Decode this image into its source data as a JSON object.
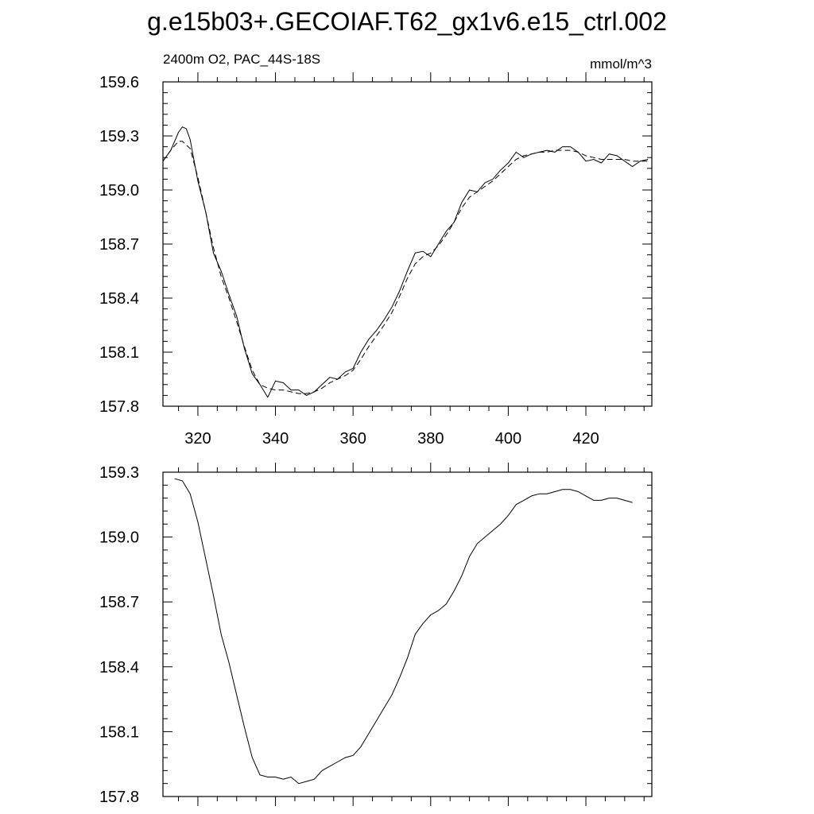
{
  "figure": {
    "title": "g.e15b03+.GECOIAF.T62_gx1v6.e15_ctrl.002"
  },
  "chart_data": [
    {
      "type": "line",
      "subtitle_left": "2400m O2, PAC_44S-18S",
      "subtitle_right": "mmol/m^3",
      "xlabel": "",
      "ylabel": "",
      "xlim": [
        311,
        437
      ],
      "ylim": [
        157.8,
        159.6
      ],
      "xticks": [
        320,
        340,
        360,
        380,
        400,
        420
      ],
      "xtick_labels": [
        "320",
        "340",
        "360",
        "380",
        "400",
        "420"
      ],
      "yticks": [
        157.8,
        158.1,
        158.4,
        158.7,
        159.0,
        159.3,
        159.6
      ],
      "ytick_labels": [
        "157.8",
        "158.1",
        "158.4",
        "158.7",
        "159.0",
        "159.3",
        "159.6"
      ],
      "grid": false,
      "series": [
        {
          "style": "solid",
          "x": [
            311,
            313,
            315,
            316,
            317,
            318,
            320,
            322,
            324,
            326,
            328,
            330,
            332,
            334,
            336,
            338,
            340,
            342,
            344,
            346,
            348,
            350,
            352,
            354,
            356,
            358,
            360,
            362,
            364,
            366,
            368,
            370,
            372,
            374,
            376,
            378,
            380,
            382,
            384,
            386,
            388,
            390,
            392,
            394,
            396,
            398,
            400,
            402,
            404,
            406,
            408,
            410,
            412,
            414,
            416,
            418,
            420,
            422,
            424,
            426,
            428,
            430,
            432,
            434,
            436
          ],
          "y": [
            159.16,
            159.22,
            159.32,
            159.35,
            159.34,
            159.28,
            159.05,
            158.88,
            158.65,
            158.55,
            158.42,
            158.3,
            158.12,
            157.98,
            157.92,
            157.85,
            157.94,
            157.93,
            157.89,
            157.89,
            157.86,
            157.88,
            157.92,
            157.96,
            157.95,
            157.99,
            158.01,
            158.1,
            158.17,
            158.22,
            158.28,
            158.35,
            158.44,
            158.55,
            158.65,
            158.66,
            158.63,
            158.7,
            158.77,
            158.82,
            158.93,
            159.0,
            158.99,
            159.04,
            159.06,
            159.11,
            159.15,
            159.21,
            159.18,
            159.2,
            159.21,
            159.22,
            159.21,
            159.24,
            159.24,
            159.21,
            159.16,
            159.17,
            159.15,
            159.2,
            159.19,
            159.16,
            159.13,
            159.16,
            159.17
          ]
        },
        {
          "style": "dashed",
          "x": [
            311,
            313,
            315,
            316,
            318,
            320,
            322,
            324,
            326,
            328,
            330,
            332,
            334,
            336,
            338,
            340,
            342,
            344,
            346,
            348,
            350,
            352,
            354,
            356,
            358,
            360,
            362,
            364,
            366,
            368,
            370,
            372,
            374,
            376,
            378,
            380,
            382,
            384,
            386,
            388,
            390,
            392,
            394,
            396,
            398,
            400,
            402,
            404,
            406,
            408,
            410,
            412,
            414,
            416,
            418,
            420,
            422,
            424,
            426,
            428,
            430,
            432,
            434,
            436
          ],
          "y": [
            159.16,
            159.22,
            159.27,
            159.27,
            159.23,
            159.07,
            158.88,
            158.68,
            158.52,
            158.4,
            158.27,
            158.13,
            158.0,
            157.92,
            157.9,
            157.89,
            157.89,
            157.88,
            157.87,
            157.87,
            157.88,
            157.9,
            157.93,
            157.95,
            157.97,
            158.0,
            158.06,
            158.13,
            158.19,
            158.25,
            158.32,
            158.41,
            158.51,
            158.59,
            158.63,
            158.65,
            158.69,
            158.75,
            158.82,
            158.9,
            158.96,
            158.99,
            159.02,
            159.05,
            159.09,
            159.13,
            159.17,
            159.19,
            159.2,
            159.21,
            159.21,
            159.22,
            159.22,
            159.22,
            159.21,
            159.19,
            159.18,
            159.17,
            159.17,
            159.17,
            159.17,
            159.16,
            159.16,
            159.16
          ]
        }
      ]
    },
    {
      "type": "line",
      "xlabel": "",
      "ylabel": "",
      "xlim": [
        311,
        437
      ],
      "ylim": [
        157.8,
        159.3
      ],
      "xticks": [
        320,
        340,
        360,
        380,
        400,
        420
      ],
      "yticks": [
        157.8,
        158.1,
        158.4,
        158.7,
        159.0,
        159.3
      ],
      "ytick_labels": [
        "157.8",
        "158.1",
        "158.4",
        "158.7",
        "159.0",
        "159.3"
      ],
      "grid": false,
      "series": [
        {
          "style": "solid",
          "x": [
            314,
            316,
            318,
            320,
            322,
            324,
            326,
            328,
            330,
            332,
            334,
            336,
            338,
            340,
            342,
            344,
            346,
            348,
            350,
            352,
            354,
            356,
            358,
            360,
            362,
            364,
            366,
            368,
            370,
            372,
            374,
            376,
            378,
            380,
            382,
            384,
            386,
            388,
            390,
            392,
            394,
            396,
            398,
            400,
            402,
            404,
            406,
            408,
            410,
            412,
            414,
            416,
            418,
            420,
            422,
            424,
            426,
            428,
            430,
            432
          ],
          "y": [
            159.27,
            159.26,
            159.2,
            159.07,
            158.9,
            158.73,
            158.55,
            158.42,
            158.27,
            158.12,
            157.98,
            157.9,
            157.89,
            157.89,
            157.88,
            157.89,
            157.86,
            157.87,
            157.88,
            157.92,
            157.94,
            157.96,
            157.98,
            157.99,
            158.03,
            158.09,
            158.15,
            158.21,
            158.27,
            158.35,
            158.44,
            158.55,
            158.6,
            158.64,
            158.66,
            158.69,
            158.75,
            158.82,
            158.91,
            158.97,
            159.0,
            159.03,
            159.06,
            159.1,
            159.15,
            159.17,
            159.19,
            159.2,
            159.2,
            159.21,
            159.22,
            159.22,
            159.21,
            159.19,
            159.17,
            159.17,
            159.18,
            159.18,
            159.17,
            159.16
          ]
        }
      ]
    }
  ]
}
